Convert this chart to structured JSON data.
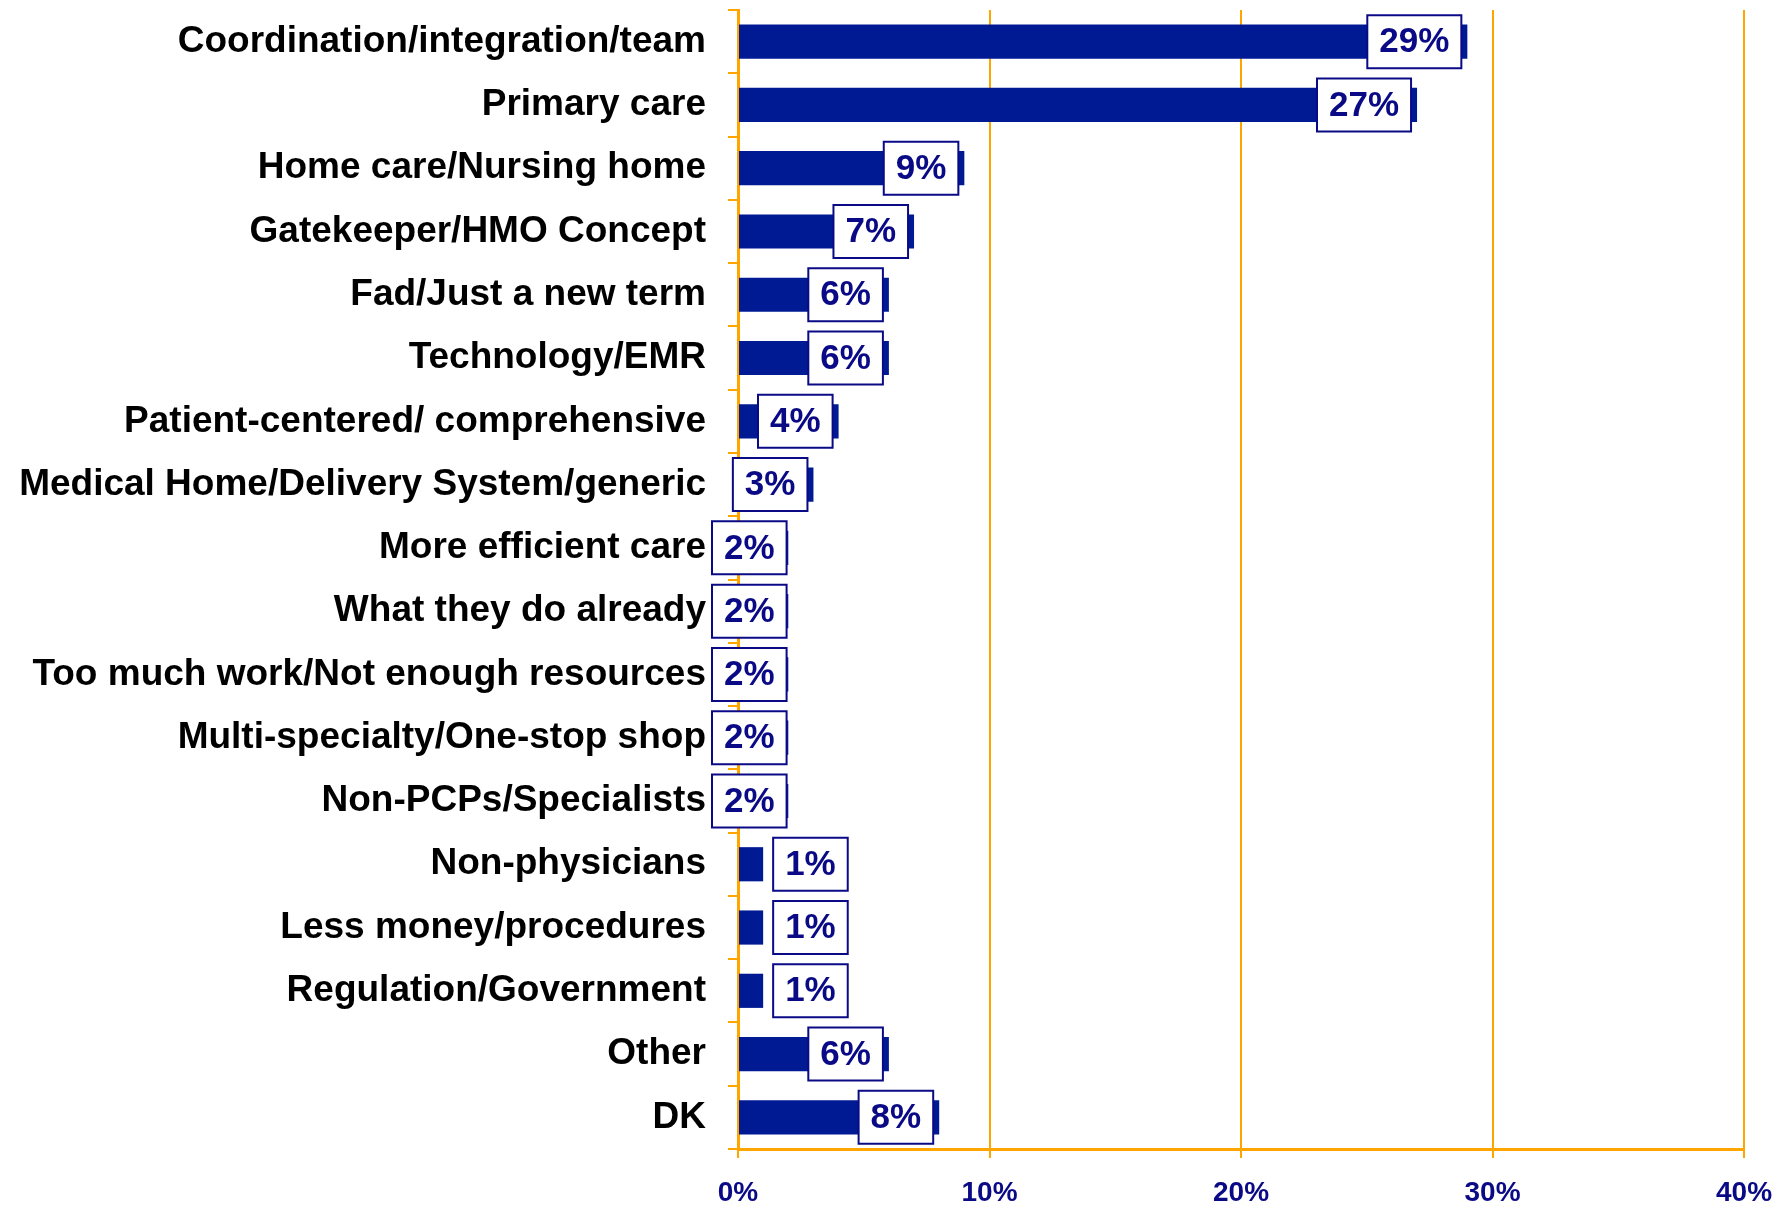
{
  "chart_data": {
    "type": "bar",
    "orientation": "horizontal",
    "categories": [
      "Coordination/integration/team",
      "Primary care",
      "Home care/Nursing home",
      "Gatekeeper/HMO Concept",
      "Fad/Just a new term",
      "Technology/EMR",
      "Patient-centered/ comprehensive",
      "Medical Home/Delivery System/generic",
      "More efficient care",
      "What they do already",
      "Too much work/Not enough resources",
      "Multi-specialty/One-stop shop",
      "Non-PCPs/Specialists",
      "Non-physicians",
      "Less money/procedures",
      "Regulation/Government",
      "Other",
      "DK"
    ],
    "values": [
      29,
      27,
      9,
      7,
      6,
      6,
      4,
      3,
      2,
      2,
      2,
      2,
      2,
      1,
      1,
      1,
      6,
      8
    ],
    "color": "#001a94",
    "value_labels": [
      "29%",
      "27%",
      "9%",
      "7%",
      "6%",
      "6%",
      "4%",
      "3%",
      "2%",
      "2%",
      "2%",
      "2%",
      "2%",
      "1%",
      "1%",
      "1%",
      "6%",
      "8%"
    ],
    "xlim": [
      0,
      40
    ],
    "xticks": [
      {
        "value": 0,
        "label": "0%"
      },
      {
        "value": 10,
        "label": "10%"
      },
      {
        "value": 20,
        "label": "20%"
      },
      {
        "value": 30,
        "label": "30%"
      },
      {
        "value": 40,
        "label": "40%"
      }
    ],
    "grid": "x"
  }
}
